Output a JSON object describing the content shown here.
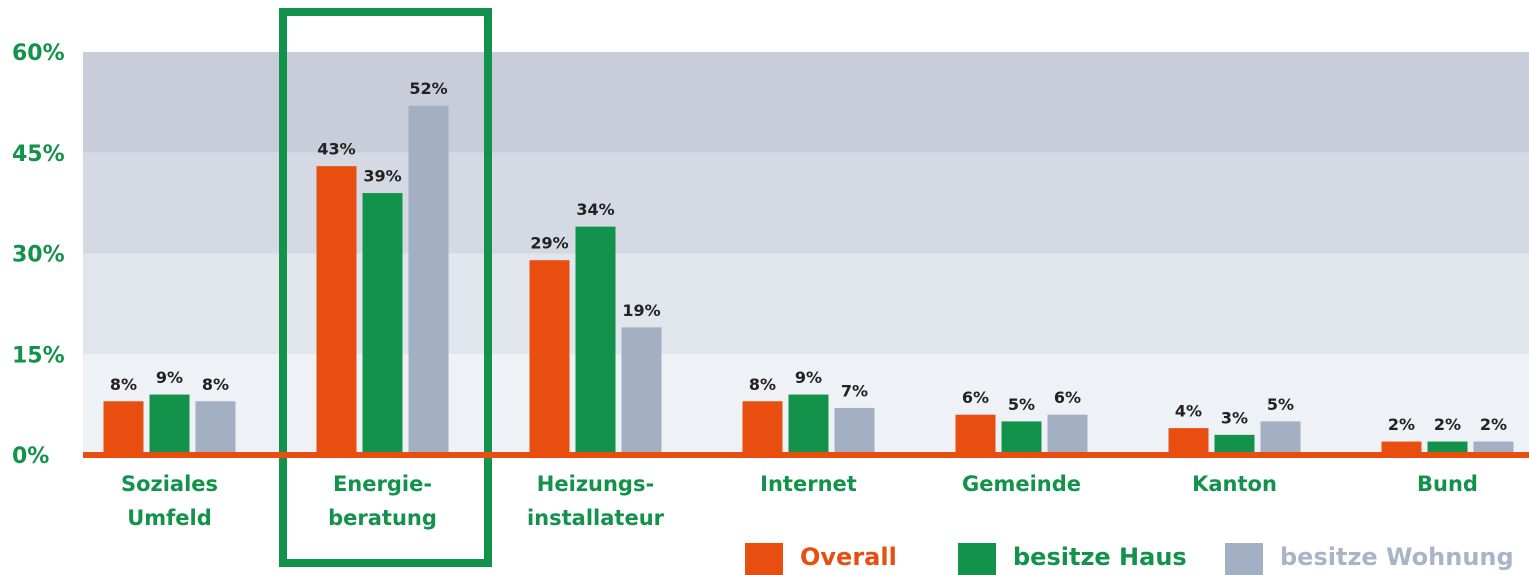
{
  "chart_data": {
    "type": "bar",
    "categories": [
      [
        "Soziales",
        "Umfeld"
      ],
      [
        "Energie-",
        "beratung"
      ],
      [
        "Heizungs-",
        "installateur"
      ],
      [
        "Internet"
      ],
      [
        "Gemeinde"
      ],
      [
        "Kanton"
      ],
      [
        "Bund"
      ]
    ],
    "series": [
      {
        "name": "Overall",
        "color": "#e84e0f",
        "values": [
          8,
          43,
          29,
          8,
          6,
          4,
          2
        ],
        "value_labels": [
          "8%",
          "43%",
          "29%",
          "8%",
          "6%",
          "4%",
          "2%"
        ]
      },
      {
        "name": "besitze Haus",
        "color": "#12924a",
        "values": [
          9,
          39,
          34,
          9,
          5,
          3,
          2
        ],
        "value_labels": [
          "9%",
          "39%",
          "34%",
          "9%",
          "5%",
          "3%",
          "2%"
        ]
      },
      {
        "name": "besitze Wohnung",
        "color": "#a3afc2",
        "values": [
          8,
          52,
          19,
          7,
          6,
          5,
          2
        ],
        "value_labels": [
          "8%",
          "52%",
          "19%",
          "7%",
          "6%",
          "5%",
          "2%"
        ]
      }
    ],
    "ylim": [
      0,
      60
    ],
    "yticks": [
      {
        "value": 0,
        "label": "0%"
      },
      {
        "value": 15,
        "label": "15%"
      },
      {
        "value": 30,
        "label": "30%"
      },
      {
        "value": 45,
        "label": "45%"
      },
      {
        "value": 60,
        "label": "60%"
      }
    ],
    "grid": true
  }
}
